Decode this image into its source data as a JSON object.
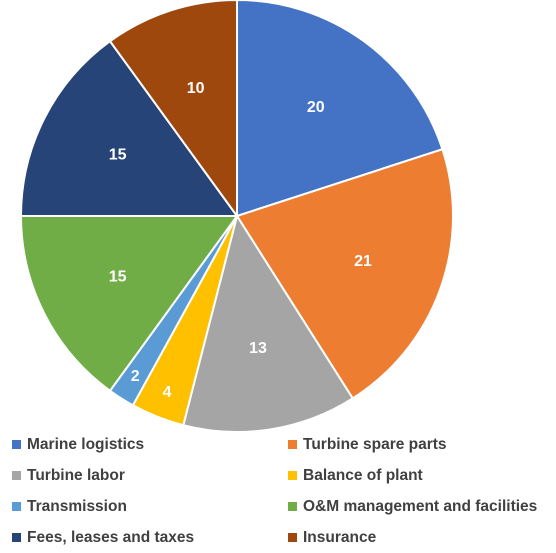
{
  "chart_data": {
    "type": "pie",
    "title": "",
    "categories": [
      "Marine logistics",
      "Turbine spare parts",
      "Turbine labor",
      "Balance of plant",
      "Transmission",
      "O&M management and facilities",
      "Fees, leases and taxes",
      "Insurance"
    ],
    "values": [
      20,
      21,
      13,
      4,
      2,
      15,
      15,
      10
    ],
    "colors": [
      "#4472C4",
      "#ED7D31",
      "#A5A5A5",
      "#FFC000",
      "#5B9BD5",
      "#70AD47",
      "#264478",
      "#9E480E"
    ],
    "data_labels": [
      "20",
      "21",
      "13",
      "4",
      "2",
      "15",
      "15",
      "10"
    ],
    "start_angle": "12 o'clock",
    "direction": "clockwise",
    "legend_position": "bottom"
  }
}
